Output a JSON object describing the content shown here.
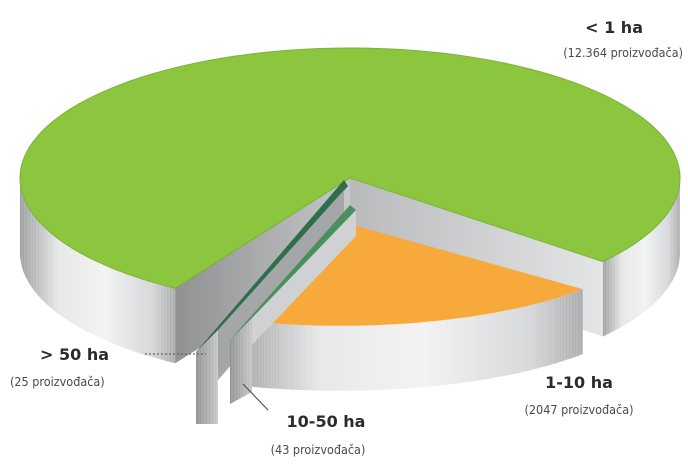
{
  "chart_data": {
    "type": "pie",
    "categories": [
      "< 1 ha",
      "1-10 ha",
      "10-50 ha",
      "> 50 ha"
    ],
    "values": [
      12364,
      2047,
      43,
      25
    ],
    "labels": [
      {
        "title": "< 1 ha",
        "sub": "(12.364 proizvođača)"
      },
      {
        "title": "1-10 ha",
        "sub": "(2047 proizvođača)"
      },
      {
        "title": "10-50 ha",
        "sub": "(43 proizvođača)"
      },
      {
        "title": "> 50 ha",
        "sub": "(25 proizvođača)"
      }
    ],
    "colors": [
      "#8cc63f",
      "#f7a93b",
      "#4a8f5e",
      "#2f6e4a"
    ],
    "side_color": "#c9cbcd",
    "three_d": true,
    "exploded_slices": [
      "1-10 ha",
      "10-50 ha",
      "> 50 ha"
    ]
  }
}
